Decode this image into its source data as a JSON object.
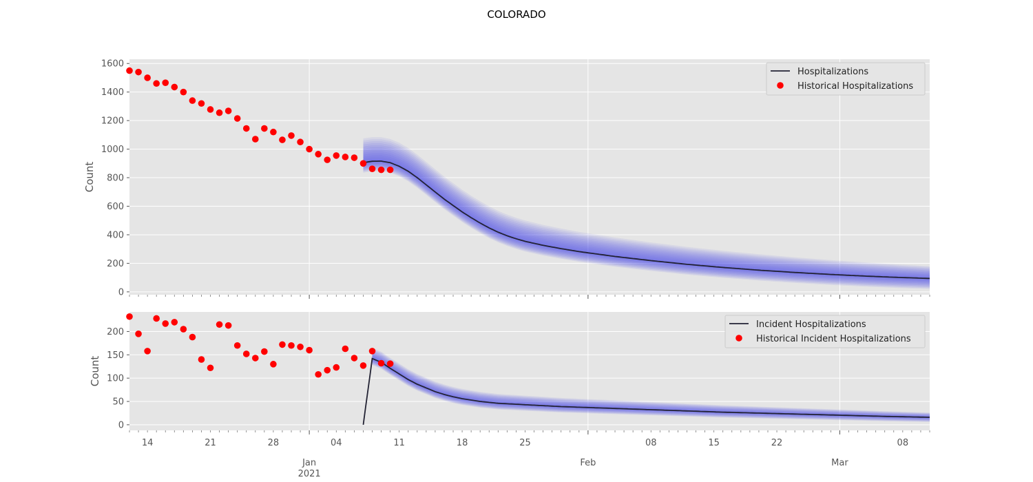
{
  "title": "COLORADO",
  "chart_data": [
    {
      "type": "line",
      "ylabel": "Count",
      "ylim": [
        -20,
        1630
      ],
      "yticks": [
        0,
        200,
        400,
        600,
        800,
        1000,
        1200,
        1400,
        1600
      ],
      "xlim": [
        "2020-12-12",
        "2021-03-11"
      ],
      "legend_position": "top-right",
      "grid": true,
      "colors": {
        "line": "#222233",
        "history": "#ff0000",
        "band": "#4a4aee",
        "background": "#e5e5e5"
      },
      "series": [
        {
          "name": "Hospitalizations",
          "kind": "line",
          "x": [
            "2021-01-07",
            "2021-01-08",
            "2021-01-09",
            "2021-01-10",
            "2021-01-11",
            "2021-01-12",
            "2021-01-13",
            "2021-01-14",
            "2021-01-15",
            "2021-01-16",
            "2021-01-17",
            "2021-01-18",
            "2021-01-19",
            "2021-01-20",
            "2021-01-21",
            "2021-01-22",
            "2021-01-23",
            "2021-01-24",
            "2021-01-25",
            "2021-01-27",
            "2021-01-29",
            "2021-01-31",
            "2021-02-04",
            "2021-02-08",
            "2021-02-12",
            "2021-02-16",
            "2021-02-20",
            "2021-02-24",
            "2021-02-28",
            "2021-03-04",
            "2021-03-08",
            "2021-03-11"
          ],
          "values": [
            905,
            915,
            916,
            905,
            880,
            845,
            800,
            750,
            700,
            650,
            605,
            560,
            520,
            482,
            448,
            418,
            393,
            372,
            354,
            326,
            303,
            282,
            248,
            219,
            193,
            171,
            152,
            136,
            122,
            110,
            100,
            94
          ]
        },
        {
          "name": "Historical Hospitalizations",
          "kind": "scatter",
          "x": [
            "2020-12-12",
            "2020-12-13",
            "2020-12-14",
            "2020-12-15",
            "2020-12-16",
            "2020-12-17",
            "2020-12-18",
            "2020-12-19",
            "2020-12-20",
            "2020-12-21",
            "2020-12-22",
            "2020-12-23",
            "2020-12-24",
            "2020-12-25",
            "2020-12-26",
            "2020-12-27",
            "2020-12-28",
            "2020-12-29",
            "2020-12-30",
            "2020-12-31",
            "2021-01-01",
            "2021-01-02",
            "2021-01-03",
            "2021-01-04",
            "2021-01-05",
            "2021-01-06",
            "2021-01-07",
            "2021-01-08",
            "2021-01-09",
            "2021-01-10"
          ],
          "values": [
            1550,
            1540,
            1500,
            1460,
            1465,
            1435,
            1400,
            1340,
            1320,
            1278,
            1255,
            1268,
            1215,
            1145,
            1070,
            1145,
            1120,
            1065,
            1095,
            1050,
            1000,
            965,
            925,
            955,
            945,
            940,
            900,
            862,
            855,
            855
          ]
        }
      ],
      "band": {
        "low_at_forecast_start": 835,
        "high_at_forecast_start": 1075,
        "low_end": 20,
        "high_end": 180
      }
    },
    {
      "type": "line",
      "ylabel": "Count",
      "ylim": [
        -12,
        242
      ],
      "yticks": [
        0,
        50,
        100,
        150,
        200
      ],
      "xlim": [
        "2020-12-12",
        "2021-03-11"
      ],
      "xtick_labels": [
        "14",
        "21",
        "28",
        "04",
        "11",
        "18",
        "25",
        "08",
        "15",
        "22",
        "08"
      ],
      "x_month_labels": [
        "Jan\n2021",
        "Feb",
        "Mar"
      ],
      "legend_position": "top-right",
      "grid": true,
      "series": [
        {
          "name": "Incident Hospitalizations",
          "kind": "line",
          "x": [
            "2021-01-07",
            "2021-01-08",
            "2021-01-09",
            "2021-01-10",
            "2021-01-11",
            "2021-01-12",
            "2021-01-13",
            "2021-01-14",
            "2021-01-15",
            "2021-01-16",
            "2021-01-17",
            "2021-01-18",
            "2021-01-20",
            "2021-01-22",
            "2021-01-25",
            "2021-01-29",
            "2021-02-04",
            "2021-02-10",
            "2021-02-16",
            "2021-02-22",
            "2021-02-28",
            "2021-03-06",
            "2021-03-11"
          ],
          "values": [
            0,
            142,
            134,
            121,
            109,
            97,
            87,
            79,
            71,
            65,
            60,
            56,
            50,
            46,
            43,
            39,
            35,
            31,
            27,
            24,
            21,
            18,
            16
          ]
        },
        {
          "name": "Historical Incident Hospitalizations",
          "kind": "scatter",
          "x": [
            "2020-12-12",
            "2020-12-13",
            "2020-12-14",
            "2020-12-15",
            "2020-12-16",
            "2020-12-17",
            "2020-12-18",
            "2020-12-19",
            "2020-12-20",
            "2020-12-21",
            "2020-12-22",
            "2020-12-23",
            "2020-12-24",
            "2020-12-25",
            "2020-12-26",
            "2020-12-27",
            "2020-12-28",
            "2020-12-29",
            "2020-12-30",
            "2020-12-31",
            "2021-01-01",
            "2021-01-02",
            "2021-01-03",
            "2021-01-04",
            "2021-01-05",
            "2021-01-06",
            "2021-01-07",
            "2021-01-08",
            "2021-01-09",
            "2021-01-10"
          ],
          "values": [
            232,
            195,
            158,
            228,
            217,
            220,
            205,
            188,
            140,
            122,
            215,
            213,
            170,
            152,
            143,
            157,
            130,
            172,
            170,
            167,
            160,
            108,
            117,
            123,
            163,
            143,
            127,
            158,
            132,
            131
          ]
        }
      ],
      "band": {
        "low_at_forecast_start": 128,
        "high_at_forecast_start": 165,
        "low_end": 6,
        "high_end": 26
      }
    }
  ]
}
